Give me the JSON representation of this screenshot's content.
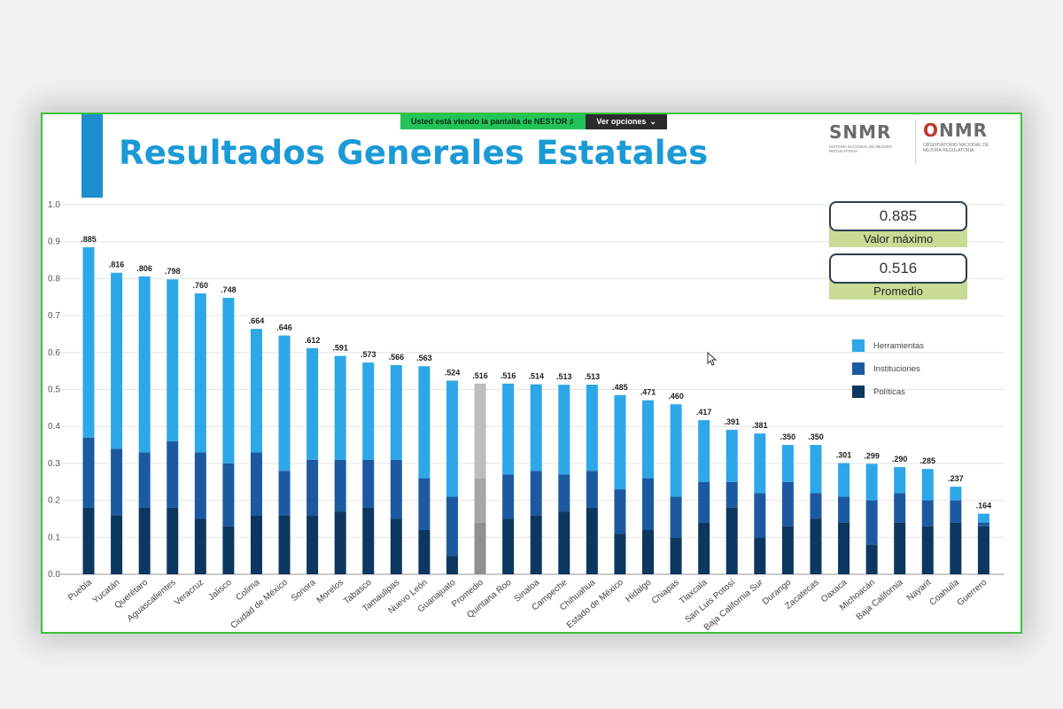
{
  "title": "Resultados Generales Estatales",
  "screen_share": {
    "text": "Usted está viendo la pantalla de  NESTOR  ♯",
    "options": "Ver opciones"
  },
  "logos": {
    "snmr_name": "SNMR",
    "snmr_sub": "SISTEMA NACIONAL DE MEJORA REGULATORIA",
    "onmr_o": "O",
    "onmr_rest": "NMR",
    "onmr_sub": "OBSERVATORIO NACIONAL DE MEJORA REGULATORIA"
  },
  "stats": {
    "max_value": "0.885",
    "max_label": "Valor máximo",
    "avg_value": "0.516",
    "avg_label": "Promedio"
  },
  "colors": {
    "herramientas": "#2ea7e8",
    "instituciones": "#1b5aa0",
    "politicas": "#0c3760",
    "promedio_top": "#bdbdbd",
    "promedio_mid": "#a6a6a6",
    "promedio_bottom": "#8f8f8f"
  },
  "chart_data": {
    "type": "bar",
    "stacked": true,
    "ylim": [
      0,
      1.0
    ],
    "yticks": [
      "0.0",
      "0.1",
      "0.2",
      "0.3",
      "0.4",
      "0.5",
      "0.6",
      "0.7",
      "0.8",
      "0.9",
      "1.0"
    ],
    "grid": true,
    "legend_position": "right",
    "categories": [
      "Puebla",
      "Yucatán",
      "Querétaro",
      "Aguascalientes",
      "Veracruz",
      "Jalisco",
      "Colima",
      "Ciudad de México",
      "Sonora",
      "Morelos",
      "Tabasco",
      "Tamaulipas",
      "Nuevo León",
      "Guanajuato",
      "Promedio",
      "Quintana Roo",
      "Sinaloa",
      "Campeche",
      "Chihuahua",
      "Estado de México",
      "Hidalgo",
      "Chiapas",
      "Tlaxcala",
      "San Luis Potosí",
      "Baja California Sur",
      "Durango",
      "Zacatecas",
      "Oaxaca",
      "Michoacán",
      "Baja California",
      "Nayarit",
      "Coahuila",
      "Guerrero"
    ],
    "total_labels": [
      ".885",
      ".816",
      ".806",
      ".798",
      ".760",
      ".748",
      ".664",
      ".646",
      ".612",
      ".591",
      ".573",
      ".566",
      ".563",
      ".524",
      ".516",
      ".516",
      ".514",
      ".513",
      ".513",
      ".485",
      ".471",
      ".460",
      ".417",
      ".391",
      ".381",
      ".350",
      ".350",
      ".301",
      ".299",
      ".290",
      ".285",
      ".237",
      ".164"
    ],
    "series": [
      {
        "name": "Políticas",
        "values": [
          0.18,
          0.16,
          0.18,
          0.18,
          0.15,
          0.13,
          0.16,
          0.16,
          0.16,
          0.17,
          0.18,
          0.15,
          0.12,
          0.05,
          0.14,
          0.15,
          0.16,
          0.17,
          0.18,
          0.11,
          0.12,
          0.1,
          0.14,
          0.18,
          0.1,
          0.13,
          0.15,
          0.14,
          0.08,
          0.14,
          0.13,
          0.14,
          0.13
        ]
      },
      {
        "name": "Instituciones",
        "values": [
          0.19,
          0.18,
          0.15,
          0.18,
          0.18,
          0.17,
          0.17,
          0.12,
          0.15,
          0.14,
          0.13,
          0.16,
          0.14,
          0.16,
          0.12,
          0.12,
          0.12,
          0.1,
          0.1,
          0.12,
          0.14,
          0.11,
          0.11,
          0.07,
          0.12,
          0.12,
          0.07,
          0.07,
          0.12,
          0.08,
          0.07,
          0.06,
          0.01
        ]
      },
      {
        "name": "Herramientas",
        "values": [
          0.515,
          0.476,
          0.476,
          0.438,
          0.43,
          0.448,
          0.334,
          0.366,
          0.302,
          0.281,
          0.263,
          0.256,
          0.303,
          0.314,
          0.256,
          0.246,
          0.234,
          0.243,
          0.233,
          0.255,
          0.211,
          0.25,
          0.167,
          0.141,
          0.161,
          0.1,
          0.13,
          0.091,
          0.099,
          0.07,
          0.085,
          0.037,
          0.024
        ]
      }
    ]
  }
}
